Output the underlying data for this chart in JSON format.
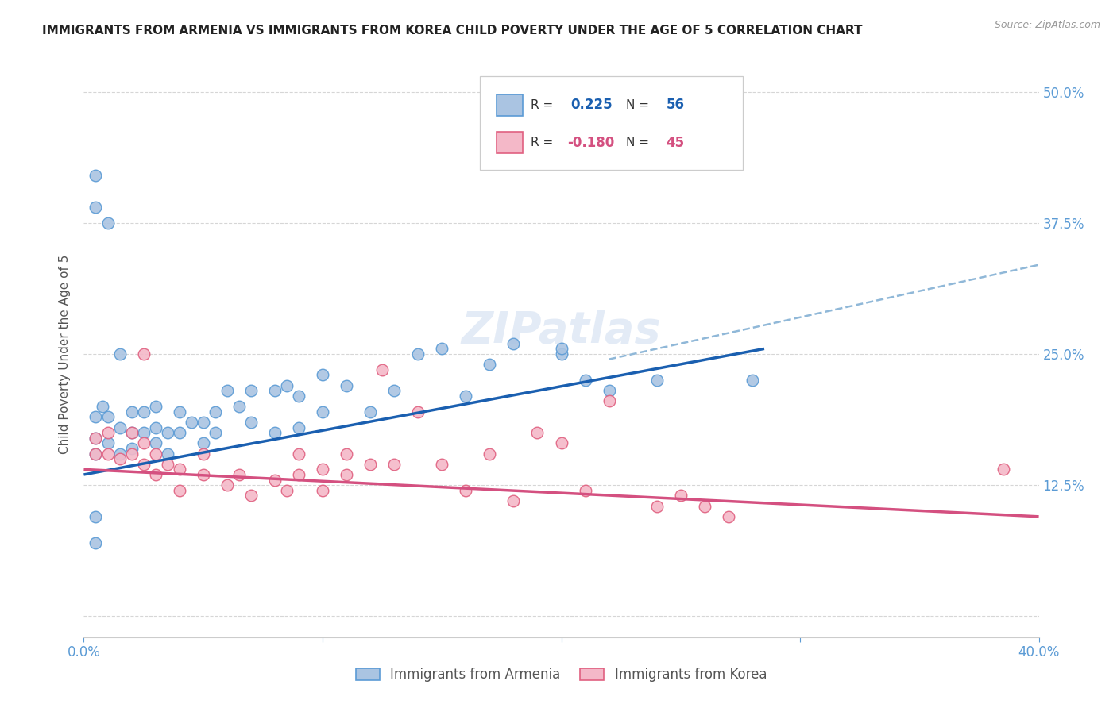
{
  "title": "IMMIGRANTS FROM ARMENIA VS IMMIGRANTS FROM KOREA CHILD POVERTY UNDER THE AGE OF 5 CORRELATION CHART",
  "source": "Source: ZipAtlas.com",
  "ylabel": "Child Poverty Under the Age of 5",
  "xlim": [
    0.0,
    0.4
  ],
  "ylim": [
    -0.02,
    0.52
  ],
  "armenia_color": "#aac4e2",
  "armenia_edge_color": "#5b9bd5",
  "korea_color": "#f4b8c8",
  "korea_edge_color": "#e06080",
  "armenia_line_color": "#1a5fb0",
  "korea_line_color": "#d45080",
  "dashed_line_color": "#90b8d8",
  "legend_armenia_R": "0.225",
  "legend_armenia_N": "56",
  "legend_korea_R": "-0.180",
  "legend_korea_N": "45",
  "legend_label_armenia": "Immigrants from Armenia",
  "legend_label_korea": "Immigrants from Korea",
  "watermark": "ZIPatlas",
  "armenia_scatter_x": [
    0.005,
    0.005,
    0.005,
    0.008,
    0.01,
    0.01,
    0.015,
    0.015,
    0.02,
    0.02,
    0.02,
    0.025,
    0.025,
    0.03,
    0.03,
    0.03,
    0.035,
    0.035,
    0.04,
    0.04,
    0.045,
    0.05,
    0.05,
    0.055,
    0.055,
    0.06,
    0.065,
    0.07,
    0.07,
    0.08,
    0.08,
    0.085,
    0.09,
    0.09,
    0.1,
    0.1,
    0.11,
    0.12,
    0.13,
    0.14,
    0.15,
    0.16,
    0.17,
    0.18,
    0.2,
    0.21,
    0.22,
    0.24,
    0.015,
    0.005,
    0.005,
    0.01,
    0.2,
    0.28,
    0.005,
    0.005
  ],
  "armenia_scatter_y": [
    0.155,
    0.17,
    0.19,
    0.2,
    0.165,
    0.19,
    0.155,
    0.18,
    0.16,
    0.175,
    0.195,
    0.175,
    0.195,
    0.165,
    0.18,
    0.2,
    0.155,
    0.175,
    0.175,
    0.195,
    0.185,
    0.165,
    0.185,
    0.175,
    0.195,
    0.215,
    0.2,
    0.185,
    0.215,
    0.175,
    0.215,
    0.22,
    0.18,
    0.21,
    0.195,
    0.23,
    0.22,
    0.195,
    0.215,
    0.25,
    0.255,
    0.21,
    0.24,
    0.26,
    0.25,
    0.225,
    0.215,
    0.225,
    0.25,
    0.39,
    0.42,
    0.375,
    0.255,
    0.225,
    0.095,
    0.07
  ],
  "korea_scatter_x": [
    0.005,
    0.005,
    0.01,
    0.01,
    0.015,
    0.02,
    0.02,
    0.025,
    0.025,
    0.03,
    0.03,
    0.035,
    0.04,
    0.04,
    0.05,
    0.05,
    0.06,
    0.065,
    0.07,
    0.08,
    0.085,
    0.09,
    0.09,
    0.1,
    0.1,
    0.11,
    0.11,
    0.12,
    0.125,
    0.13,
    0.14,
    0.15,
    0.16,
    0.17,
    0.18,
    0.19,
    0.2,
    0.21,
    0.22,
    0.24,
    0.25,
    0.26,
    0.27,
    0.385,
    0.025
  ],
  "korea_scatter_y": [
    0.155,
    0.17,
    0.155,
    0.175,
    0.15,
    0.155,
    0.175,
    0.145,
    0.165,
    0.135,
    0.155,
    0.145,
    0.12,
    0.14,
    0.135,
    0.155,
    0.125,
    0.135,
    0.115,
    0.13,
    0.12,
    0.135,
    0.155,
    0.14,
    0.12,
    0.135,
    0.155,
    0.145,
    0.235,
    0.145,
    0.195,
    0.145,
    0.12,
    0.155,
    0.11,
    0.175,
    0.165,
    0.12,
    0.205,
    0.105,
    0.115,
    0.105,
    0.095,
    0.14,
    0.25
  ],
  "armenia_line_x0": 0.0,
  "armenia_line_x1": 0.285,
  "armenia_line_y0": 0.135,
  "armenia_line_y1": 0.255,
  "dashed_line_x0": 0.22,
  "dashed_line_x1": 0.4,
  "dashed_line_y0": 0.245,
  "dashed_line_y1": 0.335,
  "korea_line_x0": 0.0,
  "korea_line_x1": 0.4,
  "korea_line_y0": 0.14,
  "korea_line_y1": 0.095,
  "background_color": "#ffffff",
  "grid_color": "#cccccc",
  "title_color": "#222222",
  "axis_color": "#5b9bd5",
  "right_axis_color": "#5b9bd5"
}
